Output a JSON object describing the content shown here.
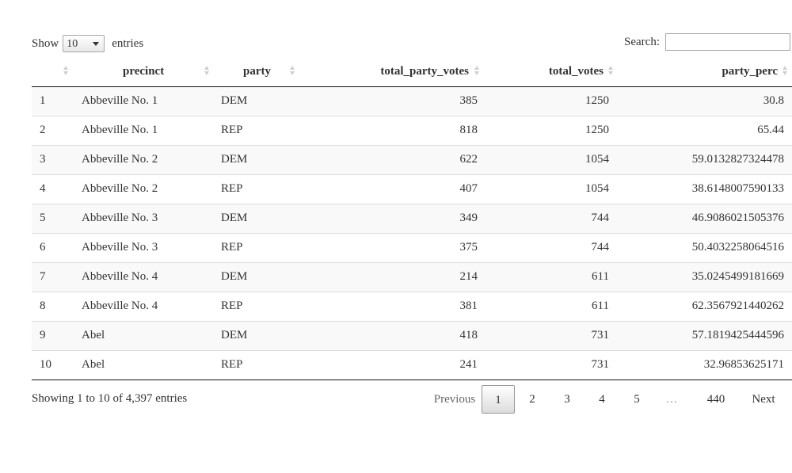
{
  "length_menu": {
    "prefix": "Show",
    "selected": "10",
    "suffix": "entries"
  },
  "search": {
    "label": "Search:",
    "value": ""
  },
  "table": {
    "columns": [
      {
        "key": "index",
        "label": ""
      },
      {
        "key": "precinct",
        "label": "precinct"
      },
      {
        "key": "party",
        "label": "party"
      },
      {
        "key": "total_party_votes",
        "label": "total_party_votes"
      },
      {
        "key": "total_votes",
        "label": "total_votes"
      },
      {
        "key": "party_perc",
        "label": "party_perc"
      }
    ],
    "rows": [
      {
        "index": "1",
        "precinct": "Abbeville No. 1",
        "party": "DEM",
        "total_party_votes": "385",
        "total_votes": "1250",
        "party_perc": "30.8"
      },
      {
        "index": "2",
        "precinct": "Abbeville No. 1",
        "party": "REP",
        "total_party_votes": "818",
        "total_votes": "1250",
        "party_perc": "65.44"
      },
      {
        "index": "3",
        "precinct": "Abbeville No. 2",
        "party": "DEM",
        "total_party_votes": "622",
        "total_votes": "1054",
        "party_perc": "59.0132827324478"
      },
      {
        "index": "4",
        "precinct": "Abbeville No. 2",
        "party": "REP",
        "total_party_votes": "407",
        "total_votes": "1054",
        "party_perc": "38.6148007590133"
      },
      {
        "index": "5",
        "precinct": "Abbeville No. 3",
        "party": "DEM",
        "total_party_votes": "349",
        "total_votes": "744",
        "party_perc": "46.9086021505376"
      },
      {
        "index": "6",
        "precinct": "Abbeville No. 3",
        "party": "REP",
        "total_party_votes": "375",
        "total_votes": "744",
        "party_perc": "50.4032258064516"
      },
      {
        "index": "7",
        "precinct": "Abbeville No. 4",
        "party": "DEM",
        "total_party_votes": "214",
        "total_votes": "611",
        "party_perc": "35.0245499181669"
      },
      {
        "index": "8",
        "precinct": "Abbeville No. 4",
        "party": "REP",
        "total_party_votes": "381",
        "total_votes": "611",
        "party_perc": "62.3567921440262"
      },
      {
        "index": "9",
        "precinct": "Abel",
        "party": "DEM",
        "total_party_votes": "418",
        "total_votes": "731",
        "party_perc": "57.1819425444596"
      },
      {
        "index": "10",
        "precinct": "Abel",
        "party": "REP",
        "total_party_votes": "241",
        "total_votes": "731",
        "party_perc": "32.96853625171"
      }
    ]
  },
  "info": "Showing 1 to 10 of 4,397 entries",
  "pagination": {
    "previous": "Previous",
    "pages": [
      "1",
      "2",
      "3",
      "4",
      "5"
    ],
    "current": "1",
    "ellipsis": "…",
    "last": "440",
    "next": "Next"
  },
  "colors": {
    "stripe": "#f9f9f9",
    "header_border": "#111111",
    "row_border": "#dddddd",
    "sort_icon": "#cfcfcf"
  }
}
